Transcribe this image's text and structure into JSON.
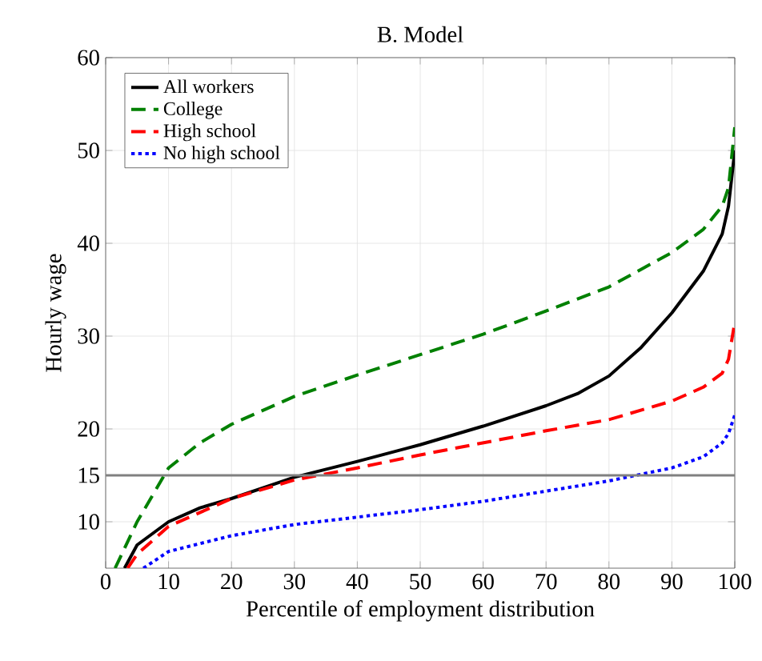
{
  "chart_data": {
    "type": "line",
    "title": "B. Model",
    "xlabel": "Percentile of employment distribution",
    "ylabel": "Hourly wage",
    "xlim": [
      0,
      100
    ],
    "ylim": [
      5,
      60
    ],
    "xticks": [
      0,
      10,
      20,
      30,
      40,
      50,
      60,
      70,
      80,
      90,
      100
    ],
    "yticks": [
      10,
      15,
      20,
      30,
      40,
      50,
      60
    ],
    "grid": true,
    "legend": "top left",
    "marker": "none",
    "ref_lines": [
      {
        "axis": "y",
        "value": 15,
        "color": "#808080",
        "line_style": "solid"
      }
    ],
    "series": [
      {
        "name": "All workers",
        "color": "#000000",
        "line_style": "solid",
        "x": [
          3,
          5,
          10,
          15,
          20,
          30,
          40,
          50,
          60,
          70,
          75,
          80,
          85,
          90,
          95,
          98,
          99,
          100
        ],
        "values": [
          5,
          7.5,
          10,
          11.5,
          12.5,
          14.8,
          16.5,
          18.3,
          20.3,
          22.5,
          23.8,
          25.7,
          28.7,
          32.5,
          37,
          41,
          44,
          50
        ]
      },
      {
        "name": "College",
        "color": "#008000",
        "line_style": "dashed",
        "x": [
          1.5,
          5,
          10,
          15,
          20,
          30,
          40,
          50,
          60,
          70,
          80,
          90,
          95,
          98,
          99,
          100
        ],
        "values": [
          5,
          10,
          15.8,
          18.5,
          20.5,
          23.5,
          25.8,
          28,
          30.2,
          32.7,
          35.3,
          39,
          41.5,
          44,
          46,
          52.5
        ]
      },
      {
        "name": "High school",
        "color": "#ff0000",
        "line_style": "dashed",
        "x": [
          3.5,
          5,
          10,
          20,
          30,
          40,
          50,
          60,
          70,
          80,
          90,
          95,
          98,
          99,
          100
        ],
        "values": [
          5,
          6.5,
          9.5,
          12.5,
          14.5,
          15.8,
          17.2,
          18.5,
          19.8,
          21,
          23,
          24.5,
          26,
          27.5,
          31.5
        ]
      },
      {
        "name": "No high school",
        "color": "#0000ff",
        "line_style": "dotted",
        "x": [
          6,
          10,
          20,
          30,
          40,
          50,
          60,
          70,
          80,
          90,
          95,
          98,
          99,
          100
        ],
        "values": [
          5,
          6.8,
          8.5,
          9.7,
          10.5,
          11.3,
          12.2,
          13.3,
          14.4,
          15.8,
          17,
          18.5,
          19.5,
          21.5
        ]
      }
    ]
  }
}
